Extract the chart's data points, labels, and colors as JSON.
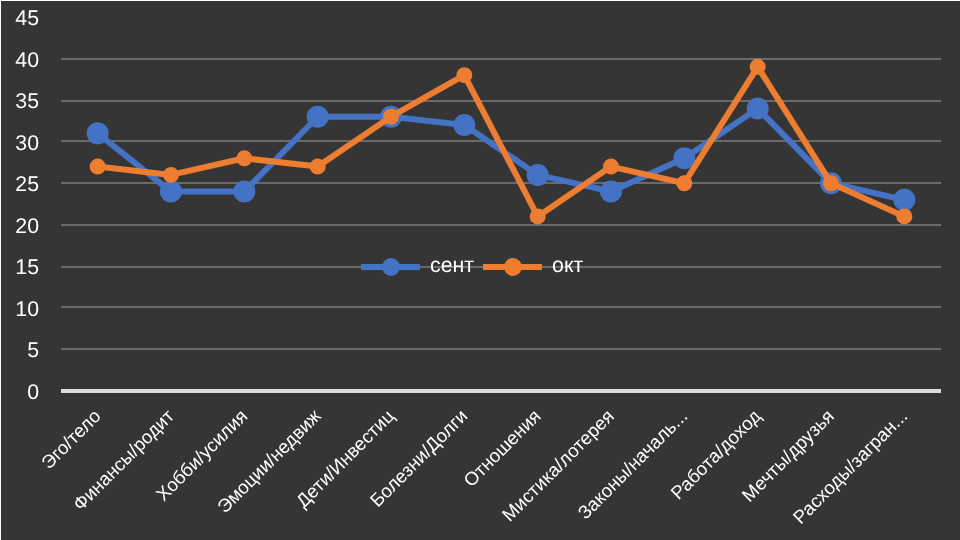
{
  "chart_data": {
    "type": "line",
    "categories": [
      "Эго/тело",
      "Финансы/родит",
      "Хобби/усилия",
      "Эмоции/недвиж",
      "Дети/Инвестиц",
      "Болезни/Долги",
      "Отношения",
      "Мистика/лотерея",
      "Законы/началь...",
      "Работа/доход",
      "Мечты/друзья",
      "Расходы/загран..."
    ],
    "series": [
      {
        "name": "сент",
        "color": "#4472c4",
        "values": [
          31,
          24,
          24,
          33,
          33,
          32,
          26,
          24,
          28,
          34,
          25,
          23
        ]
      },
      {
        "name": "окт",
        "color": "#ed7d31",
        "values": [
          27,
          26,
          28,
          27,
          33,
          38,
          21,
          27,
          25,
          39,
          25,
          21
        ]
      }
    ],
    "ylim": [
      0,
      45
    ],
    "yticks": [
      0,
      5,
      10,
      15,
      20,
      25,
      30,
      35,
      40,
      45
    ],
    "grid": "y",
    "legend": "center",
    "marker": "circle",
    "line_style": "solid"
  }
}
